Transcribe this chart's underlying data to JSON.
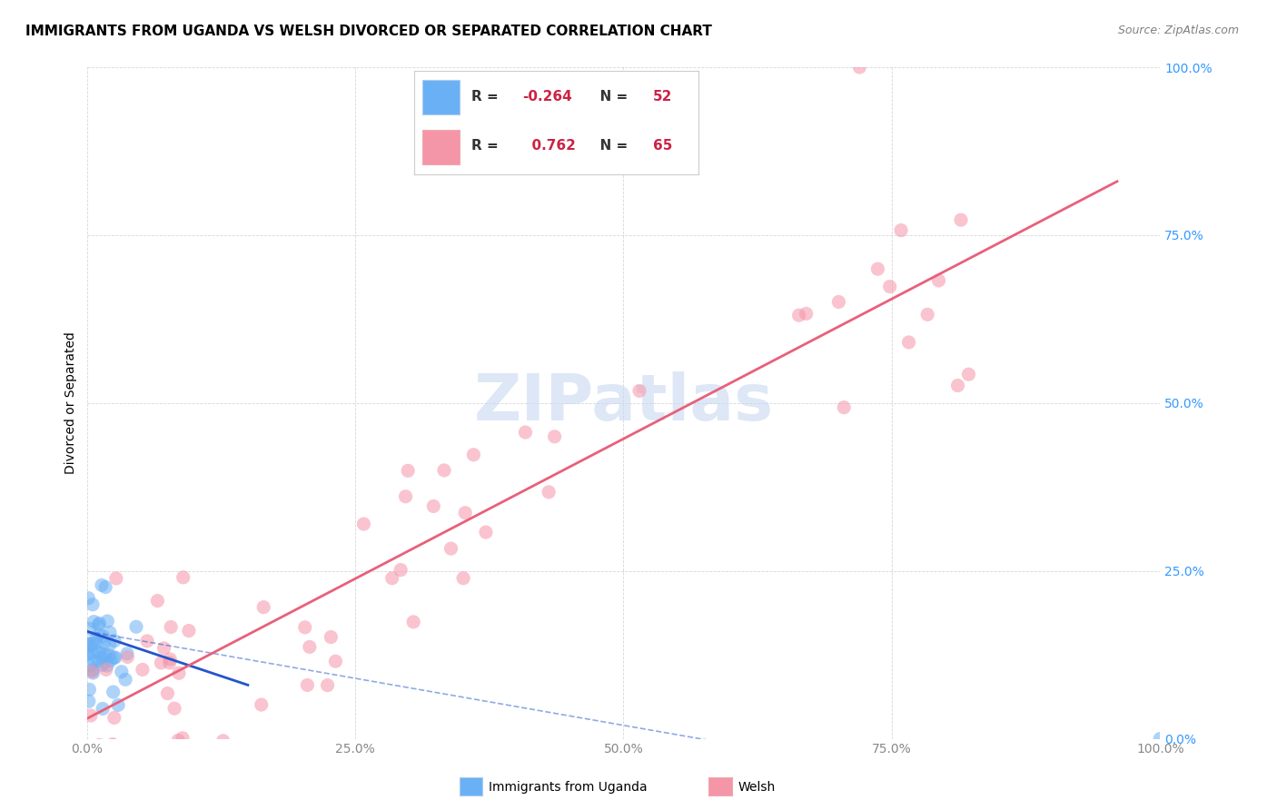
{
  "title": "IMMIGRANTS FROM UGANDA VS WELSH DIVORCED OR SEPARATED CORRELATION CHART",
  "source": "Source: ZipAtlas.com",
  "ylabel": "Divorced or Separated",
  "ytick_labels": [
    "0.0%",
    "25.0%",
    "50.0%",
    "75.0%",
    "100.0%"
  ],
  "ytick_values": [
    0,
    25,
    50,
    75,
    100
  ],
  "xtick_labels": [
    "0.0%",
    "25.0%",
    "50.0%",
    "75.0%",
    "100.0%"
  ],
  "xtick_values": [
    0,
    25,
    50,
    75,
    100
  ],
  "background_color": "#ffffff",
  "grid_color": "#cccccc",
  "title_fontsize": 11,
  "source_fontsize": 9,
  "legend_fontsize": 11,
  "axis_label_fontsize": 10,
  "tick_fontsize": 10,
  "marker_size": 120,
  "blue_color": "#6ab0f5",
  "pink_color": "#f595a8",
  "blue_line_color": "#2255cc",
  "pink_line_color": "#e8607a",
  "watermark": "ZIPatlas",
  "watermark_color": "#c8d8f0",
  "watermark_fontsize": 52,
  "blue_R": "-0.264",
  "blue_N": "52",
  "pink_R": "0.762",
  "pink_N": "65",
  "legend_label_blue": "Immigrants from Uganda",
  "legend_label_pink": "Welsh"
}
